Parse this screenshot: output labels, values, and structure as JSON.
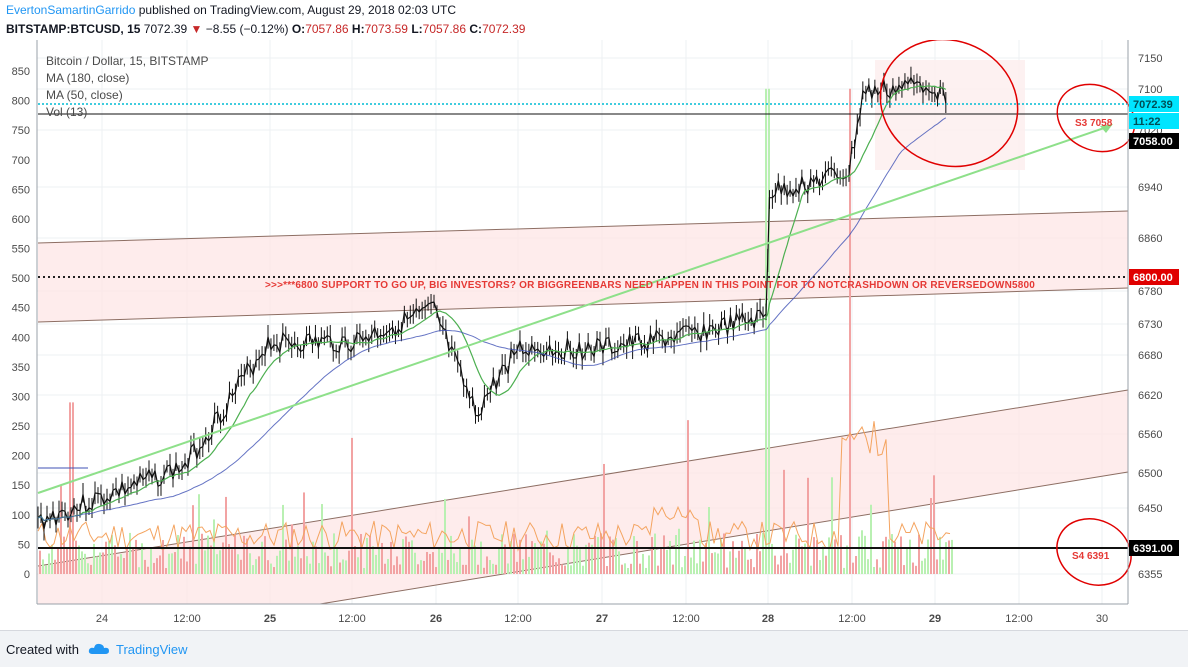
{
  "header": {
    "author": "EvertonSamartinGarrido",
    "published": "published on TradingView.com, August 29, 2018 02:03 UTC",
    "symbol": "BITSTAMP:BTCUSD, 15",
    "last": "7072.39",
    "change": "−8.55 (−0.12%)",
    "o_label": "O:",
    "o": "7057.86",
    "h_label": "H:",
    "h": "7073.59",
    "l_label": "L:",
    "l": "7057.86",
    "c_label": "C:",
    "c": "7072.39"
  },
  "footer": {
    "created": "Created with",
    "brand": "TradingView"
  },
  "chart_data": {
    "type": "line",
    "legend": [
      "Bitcoin / Dollar, 15, BITSTAMP",
      "MA (180, close)",
      "MA (50, close)",
      "Vol (13)"
    ],
    "x_ticks": [
      "24",
      "12:00",
      "25",
      "12:00",
      "26",
      "12:00",
      "27",
      "12:00",
      "28",
      "12:00",
      "29",
      "12:00",
      "30"
    ],
    "left_axis_ticks": [
      850,
      800,
      750,
      700,
      650,
      600,
      550,
      500,
      450,
      400,
      350,
      300,
      250,
      200,
      150,
      100,
      50,
      0
    ],
    "right_axis_ticks": [
      7150,
      7100,
      7020,
      6940,
      6860,
      6780,
      6730,
      6680,
      6620,
      6560,
      6500,
      6450,
      6355
    ],
    "price_labels": [
      {
        "text": "7072.39",
        "color": "#00bcd4"
      },
      {
        "text": "11:22",
        "color": "#00bcd4"
      },
      {
        "text": "7058.00",
        "color": "#000000"
      },
      {
        "text": "6800.00",
        "color": "#e00000"
      },
      {
        "text": "6391.00",
        "color": "#000000"
      }
    ],
    "annotations": [
      {
        "text": ">>>***6800 SUPPORT TO GO UP, BIG INVESTORS? OR BIGGREENBARS NEED HAPPEN IN THIS POINT FOR TO NOTCRASHDOWN OR REVERSEDOWN5800",
        "color": "#e53935"
      },
      {
        "text": "S3  7058",
        "color": "#e53935"
      },
      {
        "text": "S4   6391",
        "color": "#e53935"
      }
    ],
    "price_series_key": [
      {
        "day": "24 start",
        "price": 6430
      },
      {
        "day": "24 12:00",
        "price": 6510
      },
      {
        "day": "25",
        "price": 6700
      },
      {
        "day": "25 12:00",
        "price": 6700
      },
      {
        "day": "26",
        "price": 6750
      },
      {
        "day": "26 06:00",
        "price": 6590
      },
      {
        "day": "26 12:00",
        "price": 6690
      },
      {
        "day": "27",
        "price": 6690
      },
      {
        "day": "27 12:00",
        "price": 6710
      },
      {
        "day": "28",
        "price": 6740
      },
      {
        "day": "28 00:30",
        "price": 6930
      },
      {
        "day": "28 12:00",
        "price": 6960
      },
      {
        "day": "28 14:00",
        "price": 7090
      },
      {
        "day": "29",
        "price": 7110
      },
      {
        "day": "29 02:00",
        "price": 7072.39
      }
    ],
    "grid": true
  }
}
